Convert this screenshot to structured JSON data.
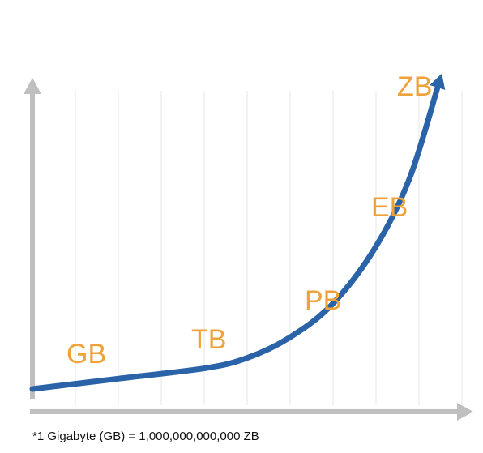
{
  "chart_data": {
    "type": "line",
    "title": "",
    "xlabel": "",
    "ylabel": "",
    "grid": "vertical lines",
    "annotations": [
      {
        "text": "GB",
        "x": 1
      },
      {
        "text": "TB",
        "x": 4.2
      },
      {
        "text": "PB",
        "x": 6.9
      },
      {
        "text": "EB",
        "x": 8.4
      },
      {
        "text": "ZB",
        "x": 9.2
      }
    ],
    "series": [
      {
        "values": [
          {
            "x": 0,
            "y": 0
          },
          {
            "x": 2,
            "y": 0.4
          },
          {
            "x": 4,
            "y": 0.8
          },
          {
            "x": 5,
            "y": 1.2
          },
          {
            "x": 6,
            "y": 2
          },
          {
            "x": 7,
            "y": 3.3
          },
          {
            "x": 8,
            "y": 5.5
          },
          {
            "x": 8.8,
            "y": 8.2
          },
          {
            "x": 9.5,
            "y": 12
          }
        ]
      }
    ],
    "colors": {
      "line": "#2b63a8",
      "axes": "#bfbfbf",
      "grid": "#e6e6e6",
      "labels": "#f0a23a"
    }
  },
  "footnote": "*1 Gigabyte (GB) = 1,000,000,000,000 ZB"
}
